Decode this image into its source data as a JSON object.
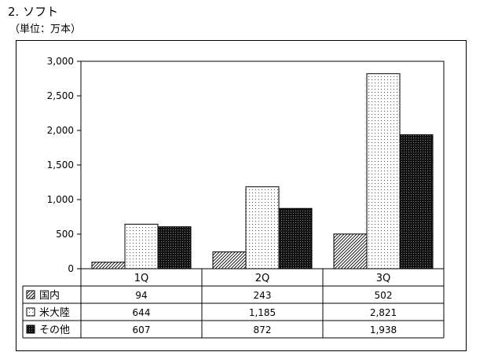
{
  "heading": "2. ソフト",
  "unit_note": "（単位：万本）",
  "chart_data": {
    "type": "bar",
    "categories": [
      "1Q",
      "2Q",
      "3Q"
    ],
    "series": [
      {
        "name": "国内",
        "values": [
          94,
          243,
          502
        ],
        "labels": [
          "94",
          "243",
          "502"
        ],
        "pattern": "hatch"
      },
      {
        "name": "米大陸",
        "values": [
          644,
          1185,
          2821
        ],
        "labels": [
          "644",
          "1,185",
          "2,821"
        ],
        "pattern": "dots"
      },
      {
        "name": "その他",
        "values": [
          607,
          872,
          1938
        ],
        "labels": [
          "607",
          "872",
          "1,938"
        ],
        "pattern": "dark"
      }
    ],
    "ylim": [
      0,
      3000
    ],
    "yticks": [
      0,
      500,
      1000,
      1500,
      2000,
      2500,
      3000
    ],
    "ytick_labels": [
      "0",
      "500",
      "1,000",
      "1,500",
      "2,000",
      "2,500",
      "3,000"
    ],
    "grid": false,
    "legend": "data table below chart"
  }
}
